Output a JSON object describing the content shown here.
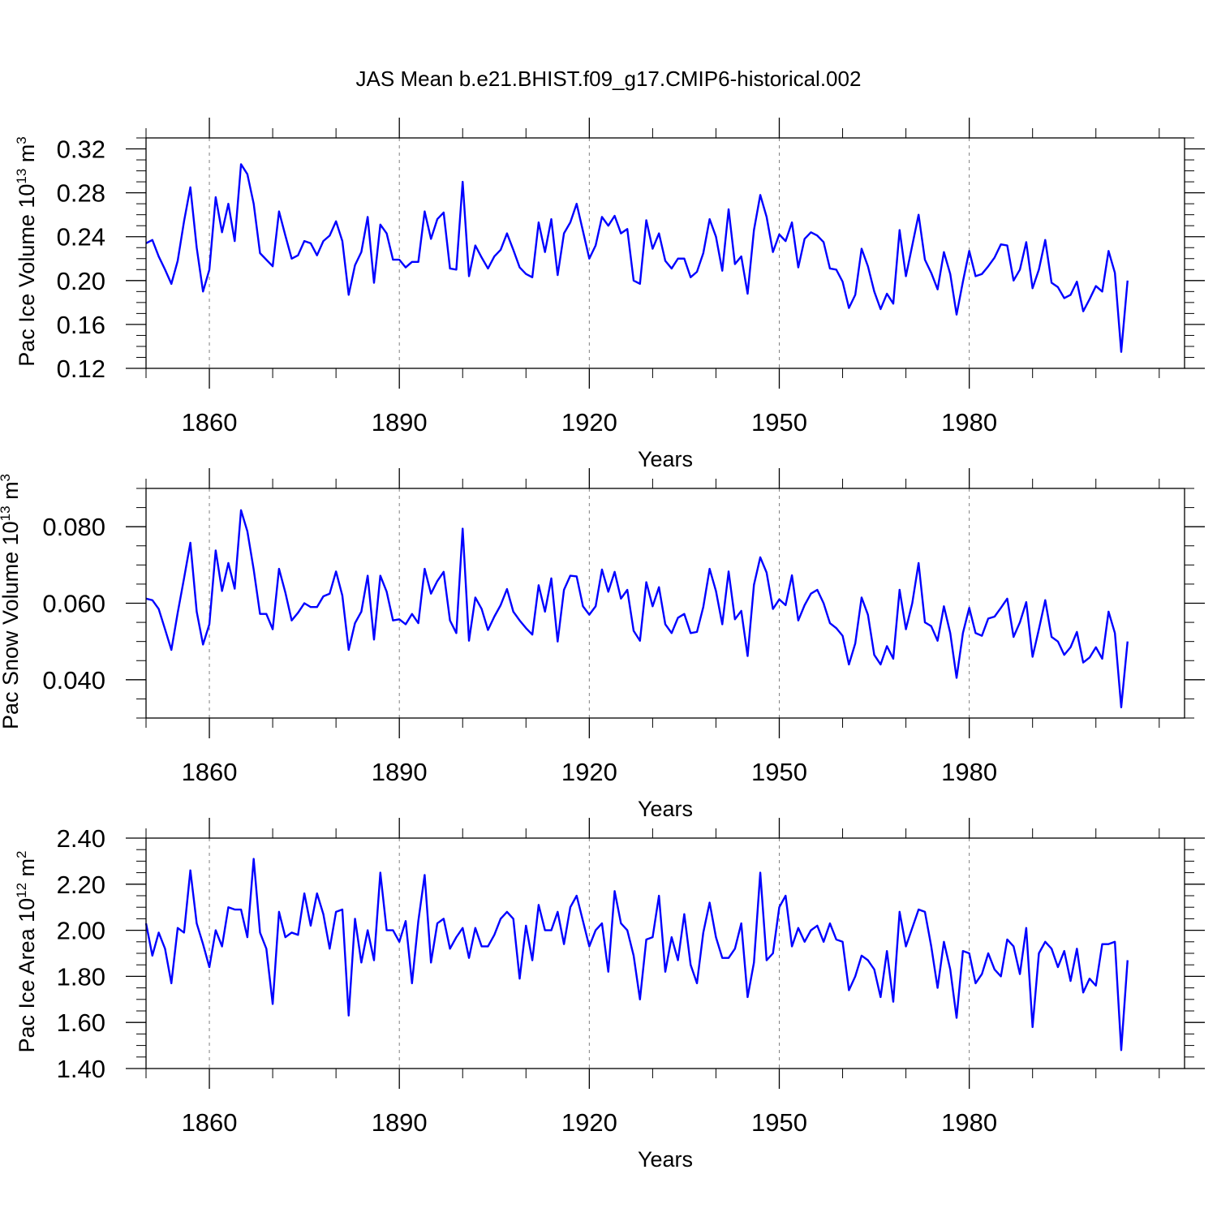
{
  "figure_title": "JAS Mean b.e21.BHIST.f09_g17.CMIP6-historical.002",
  "colors": {
    "series": "#0000ff",
    "axis": "#000000",
    "grid": "#808080"
  },
  "chart_data": [
    {
      "type": "line",
      "title": "JAS Mean b.e21.BHIST.f09_g17.CMIP6-historical.002",
      "xlabel": "Years",
      "ylabel_main": "Pac Ice Volume 10",
      "ylabel_sup": "13",
      "ylabel_unit": " m",
      "ylabel_unit_sup": "3",
      "xlim": [
        1850,
        2014
      ],
      "ylim": [
        0.12,
        0.33
      ],
      "yticks": [
        0.12,
        0.16,
        0.2,
        0.24,
        0.28,
        0.32
      ],
      "ytick_labels": [
        "0.12",
        "0.16",
        "0.20",
        "0.24",
        "0.28",
        "0.32"
      ],
      "yminor_step": 0.01,
      "xticks": [
        1860,
        1890,
        1920,
        1950,
        1980
      ],
      "xtick_labels": [
        "1860",
        "1890",
        "1920",
        "1950",
        "1980"
      ],
      "xminor_step": 10,
      "grid": "vertical-dashed-at-major-x",
      "x_start": 1850,
      "series": [
        {
          "name": "Pac Ice Volume",
          "values": [
            0.234,
            0.237,
            0.222,
            0.21,
            0.197,
            0.218,
            0.254,
            0.285,
            0.23,
            0.19,
            0.21,
            0.276,
            0.244,
            0.27,
            0.236,
            0.306,
            0.297,
            0.27,
            0.225,
            0.219,
            0.213,
            0.263,
            0.241,
            0.22,
            0.223,
            0.236,
            0.234,
            0.223,
            0.236,
            0.241,
            0.254,
            0.236,
            0.187,
            0.214,
            0.226,
            0.258,
            0.198,
            0.251,
            0.243,
            0.219,
            0.219,
            0.212,
            0.217,
            0.217,
            0.263,
            0.238,
            0.256,
            0.262,
            0.211,
            0.21,
            0.29,
            0.204,
            0.232,
            0.221,
            0.211,
            0.222,
            0.228,
            0.243,
            0.228,
            0.212,
            0.206,
            0.203,
            0.253,
            0.226,
            0.256,
            0.205,
            0.243,
            0.253,
            0.27,
            0.245,
            0.22,
            0.232,
            0.258,
            0.25,
            0.259,
            0.243,
            0.247,
            0.2,
            0.197,
            0.255,
            0.229,
            0.243,
            0.218,
            0.211,
            0.22,
            0.22,
            0.203,
            0.208,
            0.225,
            0.256,
            0.24,
            0.209,
            0.265,
            0.215,
            0.222,
            0.188,
            0.246,
            0.278,
            0.258,
            0.226,
            0.242,
            0.236,
            0.253,
            0.212,
            0.238,
            0.244,
            0.241,
            0.235,
            0.211,
            0.21,
            0.199,
            0.175,
            0.187,
            0.229,
            0.213,
            0.19,
            0.174,
            0.188,
            0.179,
            0.246,
            0.204,
            0.232,
            0.26,
            0.219,
            0.207,
            0.192,
            0.226,
            0.206,
            0.169,
            0.199,
            0.227,
            0.204,
            0.206,
            0.213,
            0.221,
            0.233,
            0.232,
            0.2,
            0.21,
            0.235,
            0.193,
            0.21,
            0.237,
            0.198,
            0.194,
            0.184,
            0.187,
            0.199,
            0.172,
            0.183,
            0.195,
            0.19,
            0.227,
            0.207,
            0.135,
            0.2
          ]
        }
      ]
    },
    {
      "type": "line",
      "xlabel": "Years",
      "ylabel_main": "Pac Snow Volume 10",
      "ylabel_sup": "13",
      "ylabel_unit": " m",
      "ylabel_unit_sup": "3",
      "xlim": [
        1850,
        2014
      ],
      "ylim": [
        0.03,
        0.09
      ],
      "yticks": [
        0.04,
        0.06,
        0.08
      ],
      "ytick_labels": [
        "0.040",
        "0.060",
        "0.080"
      ],
      "yminor_step": 0.005,
      "xticks": [
        1860,
        1890,
        1920,
        1950,
        1980
      ],
      "xtick_labels": [
        "1860",
        "1890",
        "1920",
        "1950",
        "1980"
      ],
      "xminor_step": 10,
      "grid": "vertical-dashed-at-major-x",
      "x_start": 1850,
      "series": [
        {
          "name": "Pac Snow Volume",
          "values": [
            0.0612,
            0.0608,
            0.0585,
            0.0532,
            0.0478,
            0.0575,
            0.0665,
            0.0758,
            0.0578,
            0.0492,
            0.0545,
            0.0738,
            0.0632,
            0.0705,
            0.0638,
            0.0843,
            0.0788,
            0.0688,
            0.0572,
            0.0572,
            0.0532,
            0.069,
            0.0628,
            0.0555,
            0.0575,
            0.06,
            0.059,
            0.059,
            0.0618,
            0.0625,
            0.0683,
            0.062,
            0.0478,
            0.0548,
            0.0578,
            0.0672,
            0.0505,
            0.0672,
            0.063,
            0.0555,
            0.0558,
            0.0545,
            0.0572,
            0.0548,
            0.069,
            0.0625,
            0.0658,
            0.0682,
            0.0555,
            0.0522,
            0.0795,
            0.0502,
            0.0615,
            0.0585,
            0.053,
            0.0565,
            0.0595,
            0.0637,
            0.0578,
            0.0555,
            0.0535,
            0.0518,
            0.0647,
            0.0578,
            0.0665,
            0.05,
            0.0635,
            0.0672,
            0.067,
            0.0592,
            0.057,
            0.0592,
            0.0688,
            0.063,
            0.0682,
            0.0612,
            0.0635,
            0.0528,
            0.0502,
            0.0655,
            0.0592,
            0.0642,
            0.0545,
            0.0522,
            0.0562,
            0.0572,
            0.0522,
            0.0525,
            0.059,
            0.069,
            0.0632,
            0.0545,
            0.0683,
            0.0558,
            0.058,
            0.0462,
            0.0648,
            0.072,
            0.068,
            0.0585,
            0.061,
            0.0595,
            0.0673,
            0.0555,
            0.0595,
            0.0625,
            0.0635,
            0.06,
            0.0548,
            0.0535,
            0.0515,
            0.044,
            0.0495,
            0.0615,
            0.057,
            0.0465,
            0.044,
            0.0488,
            0.0455,
            0.0635,
            0.0532,
            0.06,
            0.0705,
            0.055,
            0.054,
            0.0502,
            0.0592,
            0.0522,
            0.0405,
            0.0522,
            0.0588,
            0.0522,
            0.0515,
            0.056,
            0.0565,
            0.0588,
            0.0612,
            0.0512,
            0.055,
            0.0603,
            0.046,
            0.0532,
            0.0608,
            0.0512,
            0.05,
            0.0465,
            0.0485,
            0.0525,
            0.0445,
            0.0458,
            0.0485,
            0.0455,
            0.0578,
            0.0522,
            0.0328,
            0.05
          ]
        }
      ]
    },
    {
      "type": "line",
      "xlabel": "Years",
      "ylabel_main": "Pac Ice Area 10",
      "ylabel_sup": "12",
      "ylabel_unit": " m",
      "ylabel_unit_sup": "2",
      "xlim": [
        1850,
        2014
      ],
      "ylim": [
        1.4,
        2.4
      ],
      "yticks": [
        1.4,
        1.6,
        1.8,
        2.0,
        2.2,
        2.4
      ],
      "ytick_labels": [
        "1.40",
        "1.60",
        "1.80",
        "2.00",
        "2.20",
        "2.40"
      ],
      "yminor_step": 0.05,
      "xticks": [
        1860,
        1890,
        1920,
        1950,
        1980
      ],
      "xtick_labels": [
        "1860",
        "1890",
        "1920",
        "1950",
        "1980"
      ],
      "xminor_step": 10,
      "grid": "vertical-dashed-at-major-x",
      "x_start": 1850,
      "series": [
        {
          "name": "Pac Ice Area",
          "values": [
            2.03,
            1.89,
            1.99,
            1.92,
            1.77,
            2.01,
            1.99,
            2.26,
            2.03,
            1.94,
            1.84,
            2.0,
            1.93,
            2.1,
            2.09,
            2.09,
            1.97,
            2.31,
            1.99,
            1.92,
            1.68,
            2.08,
            1.97,
            1.99,
            1.98,
            2.16,
            2.02,
            2.16,
            2.07,
            1.92,
            2.08,
            2.09,
            1.63,
            2.05,
            1.86,
            2.0,
            1.87,
            2.25,
            2.0,
            2.0,
            1.95,
            2.04,
            1.77,
            2.04,
            2.24,
            1.86,
            2.03,
            2.05,
            1.92,
            1.97,
            2.01,
            1.88,
            2.01,
            1.93,
            1.93,
            1.98,
            2.05,
            2.08,
            2.05,
            1.79,
            2.02,
            1.87,
            2.11,
            2.0,
            2.0,
            2.08,
            1.94,
            2.1,
            2.15,
            2.04,
            1.93,
            2.0,
            2.03,
            1.82,
            2.17,
            2.03,
            2.0,
            1.89,
            1.7,
            1.96,
            1.97,
            2.15,
            1.82,
            1.97,
            1.87,
            2.07,
            1.85,
            1.77,
            1.99,
            2.12,
            1.97,
            1.88,
            1.88,
            1.92,
            2.03,
            1.71,
            1.86,
            2.25,
            1.87,
            1.9,
            2.1,
            2.15,
            1.93,
            2.01,
            1.95,
            2.0,
            2.02,
            1.95,
            2.03,
            1.96,
            1.95,
            1.74,
            1.8,
            1.89,
            1.87,
            1.83,
            1.71,
            1.91,
            1.69,
            2.08,
            1.93,
            2.01,
            2.09,
            2.08,
            1.93,
            1.75,
            1.95,
            1.83,
            1.62,
            1.91,
            1.9,
            1.77,
            1.81,
            1.9,
            1.83,
            1.8,
            1.96,
            1.93,
            1.81,
            2.01,
            1.58,
            1.9,
            1.95,
            1.92,
            1.84,
            1.91,
            1.78,
            1.92,
            1.73,
            1.79,
            1.76,
            1.94,
            1.94,
            1.95,
            1.48,
            1.87
          ]
        }
      ]
    }
  ]
}
